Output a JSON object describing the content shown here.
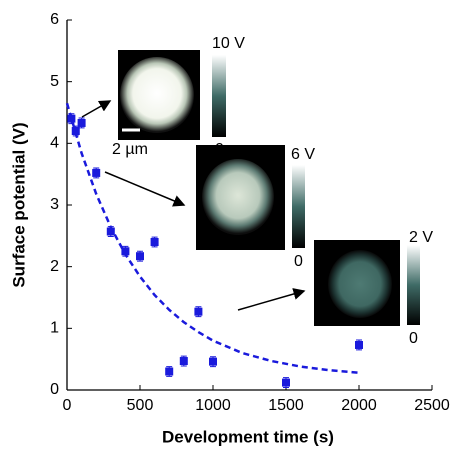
{
  "chart_data": {
    "type": "scatter",
    "x_label": "Development time (s)",
    "y_label": "Surface potential (V)",
    "xlim": [
      0,
      2500
    ],
    "xticks": [
      0,
      500,
      1000,
      1500,
      2000,
      2500
    ],
    "ylim": [
      0,
      6
    ],
    "yticks": [
      0,
      1,
      2,
      3,
      4,
      5,
      6
    ],
    "series": [
      {
        "color": "#1a1adc",
        "x": [
          30,
          60,
          100,
          200,
          300,
          400,
          500,
          600,
          700,
          800,
          900,
          1000,
          1500,
          2000
        ],
        "values": [
          4.4,
          4.2,
          4.33,
          3.52,
          2.57,
          2.25,
          2.17,
          2.4,
          0.3,
          0.47,
          1.27,
          0.46,
          0.12,
          0.73
        ],
        "errors": [
          0.08,
          0.08,
          0.08,
          0.08,
          0.08,
          0.08,
          0.08,
          0.08,
          0.08,
          0.08,
          0.08,
          0.08,
          0.08,
          0.08
        ]
      },
      {
        "color": "#1a1adc",
        "dashed": true,
        "x": [
          0,
          100,
          200,
          300,
          400,
          500,
          600,
          700,
          800,
          900,
          1000,
          1200,
          1400,
          1600,
          1800,
          2000
        ],
        "values": [
          4.65,
          3.84,
          3.18,
          2.64,
          2.2,
          1.84,
          1.54,
          1.3,
          1.1,
          0.94,
          0.8,
          0.6,
          0.47,
          0.38,
          0.32,
          0.28
        ]
      }
    ],
    "annotations": [
      "10 V",
      "0",
      "2 µm",
      "6 V",
      "0",
      "2 V",
      "0"
    ]
  }
}
